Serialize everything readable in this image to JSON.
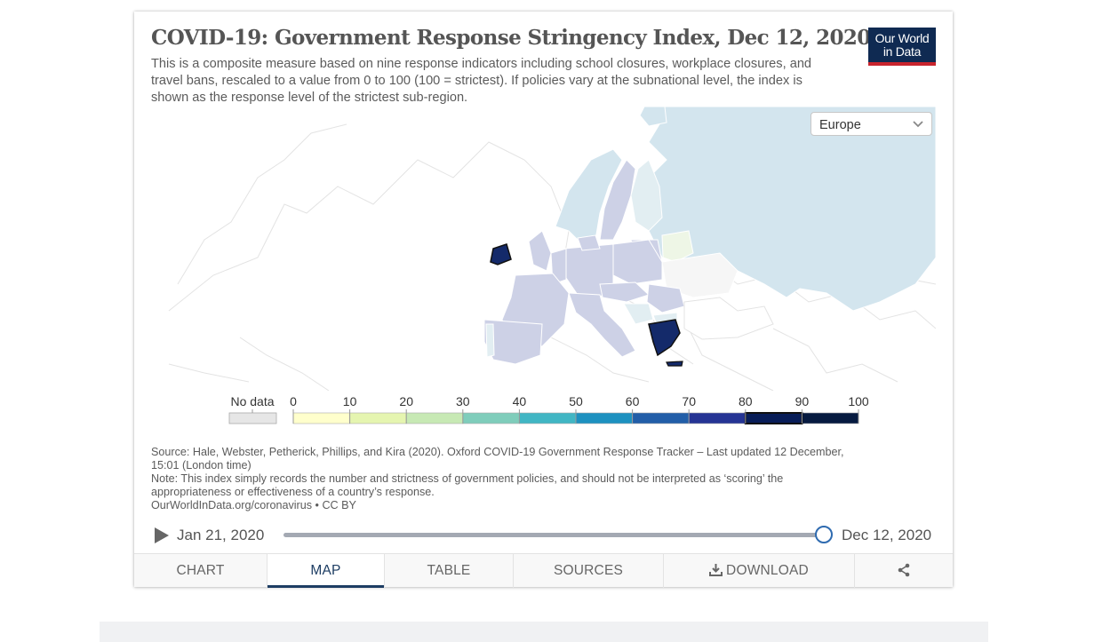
{
  "chart": {
    "title": "COVID-19: Government Response Stringency Index, Dec 12, 2020",
    "subtitle": "This is a composite measure based on nine response indicators including school closures, workplace closures, and travel bans, rescaled to a value from 0 to 100 (100 = strictest). If policies vary at the subnational level, the index is shown as the response level of the strictest sub-region.",
    "logo_line1": "Our World",
    "logo_line2": "in Data",
    "region_selector": {
      "value": "Europe"
    }
  },
  "legend": {
    "no_data_label": "No data",
    "ticks": [
      "0",
      "10",
      "20",
      "30",
      "40",
      "50",
      "60",
      "70",
      "80",
      "90",
      "100"
    ],
    "colors": [
      "#ffffcc",
      "#e5f5b0",
      "#c7e9b4",
      "#7fcdbb",
      "#41b6c4",
      "#1d91c0",
      "#225ea8",
      "#253494",
      "#081d58",
      "#061a40"
    ],
    "no_data_color": "#e6e6e6",
    "highlighted_bin": "80-90"
  },
  "source": {
    "line1": "Source: Hale, Webster, Petherick, Phillips, and Kira (2020). Oxford COVID-19 Government Response Tracker – Last updated 12 December, 15:01 (London time)",
    "line2": "Note: This index simply records the number and strictness of government policies, and should not be interpreted as ‘scoring’ the appropriateness or effectiveness of a country’s response.",
    "line3": "OurWorldInData.org/coronavirus • CC BY"
  },
  "timeline": {
    "start": "Jan 21, 2020",
    "end": "Dec 12, 2020",
    "position": 1.0
  },
  "tabs": [
    {
      "label": "CHART"
    },
    {
      "label": "MAP"
    },
    {
      "label": "TABLE"
    },
    {
      "label": "SOURCES"
    },
    {
      "label": "DOWNLOAD"
    }
  ],
  "colors": {
    "brand_navy": "#0f2a52",
    "brand_red": "#c8242d",
    "light_band": "#d3e5ee",
    "mid_band": "#cdd1e6",
    "high_band": "#142a6a"
  },
  "icons": [
    "play-icon",
    "chevron-down-icon",
    "download-icon",
    "share-icon"
  ]
}
